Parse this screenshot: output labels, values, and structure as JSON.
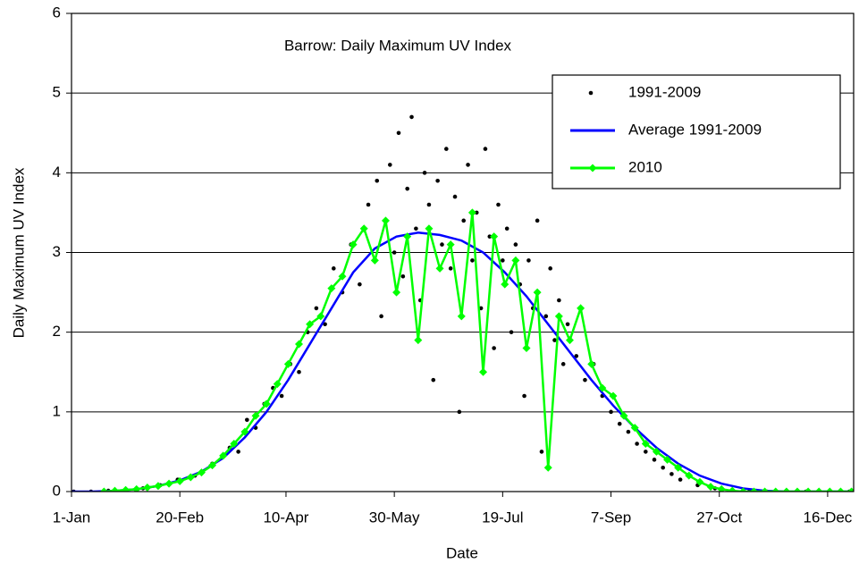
{
  "chart_data": {
    "type": "scatter",
    "title": "Barrow: Daily Maximum UV Index",
    "x_label": "Date",
    "y_label": "Daily Maximum UV Index",
    "xlim": [
      1,
      362
    ],
    "xticks": [
      {
        "value": 1,
        "label": "1-Jan"
      },
      {
        "value": 51,
        "label": "20-Feb"
      },
      {
        "value": 100,
        "label": "10-Apr"
      },
      {
        "value": 150,
        "label": "30-May"
      },
      {
        "value": 200,
        "label": "19-Jul"
      },
      {
        "value": 250,
        "label": "7-Sep"
      },
      {
        "value": 300,
        "label": "27-Oct"
      },
      {
        "value": 350,
        "label": "16-Dec"
      }
    ],
    "ylim": [
      0,
      6
    ],
    "yticks": [
      0,
      1,
      2,
      3,
      4,
      5,
      6
    ],
    "grid": "y",
    "legend": "upper right",
    "series": [
      {
        "name": "1991-2009",
        "color": "#000000",
        "marker": "dot",
        "line": false,
        "x": [
          2,
          10,
          18,
          26,
          34,
          42,
          50,
          58,
          66,
          74,
          78,
          82,
          86,
          90,
          94,
          98,
          102,
          106,
          110,
          114,
          118,
          122,
          126,
          130,
          134,
          138,
          142,
          144,
          146,
          148,
          150,
          152,
          154,
          156,
          158,
          160,
          162,
          164,
          166,
          168,
          170,
          172,
          174,
          176,
          178,
          180,
          182,
          184,
          186,
          188,
          190,
          192,
          194,
          196,
          198,
          200,
          202,
          204,
          206,
          208,
          210,
          212,
          214,
          216,
          218,
          220,
          222,
          224,
          226,
          228,
          230,
          234,
          238,
          242,
          246,
          250,
          254,
          258,
          262,
          266,
          270,
          274,
          278,
          282,
          290,
          298,
          306,
          314,
          322,
          340,
          360
        ],
        "values": [
          0,
          0,
          0.01,
          0.02,
          0.04,
          0.08,
          0.15,
          0.2,
          0.35,
          0.55,
          0.5,
          0.9,
          0.8,
          1.1,
          1.3,
          1.2,
          1.6,
          1.5,
          2.0,
          2.3,
          2.1,
          2.8,
          2.5,
          3.1,
          2.6,
          3.6,
          3.9,
          2.2,
          3.4,
          4.1,
          3.0,
          4.5,
          2.7,
          3.8,
          4.7,
          3.3,
          2.4,
          4.0,
          3.6,
          1.4,
          3.9,
          3.1,
          4.3,
          2.8,
          3.7,
          1.0,
          3.4,
          4.1,
          2.9,
          3.5,
          2.3,
          4.3,
          3.2,
          1.8,
          3.6,
          2.9,
          3.3,
          2.0,
          3.1,
          2.6,
          1.2,
          2.9,
          2.3,
          3.4,
          0.5,
          2.2,
          2.8,
          1.9,
          2.4,
          1.6,
          2.1,
          1.7,
          1.4,
          1.6,
          1.2,
          1.0,
          0.85,
          0.75,
          0.6,
          0.5,
          0.4,
          0.3,
          0.22,
          0.15,
          0.08,
          0.04,
          0.02,
          0.01,
          0,
          0,
          0
        ]
      },
      {
        "name": "Average 1991-2009",
        "color": "#0000ff",
        "marker": "none",
        "line": true,
        "x": [
          1,
          11,
          21,
          31,
          41,
          51,
          61,
          71,
          81,
          91,
          101,
          111,
          121,
          131,
          141,
          151,
          161,
          171,
          181,
          191,
          201,
          211,
          221,
          231,
          241,
          251,
          261,
          271,
          281,
          291,
          301,
          311,
          321,
          331,
          341,
          351,
          361
        ],
        "values": [
          0,
          0,
          0.01,
          0.03,
          0.07,
          0.14,
          0.25,
          0.42,
          0.68,
          1.0,
          1.4,
          1.85,
          2.3,
          2.75,
          3.05,
          3.2,
          3.25,
          3.22,
          3.15,
          3.0,
          2.75,
          2.45,
          2.1,
          1.75,
          1.4,
          1.08,
          0.8,
          0.55,
          0.35,
          0.2,
          0.1,
          0.04,
          0.01,
          0,
          0,
          0,
          0
        ]
      },
      {
        "name": "2010",
        "color": "#00ff00",
        "marker": "diamond",
        "line": true,
        "x": [
          16,
          21,
          26,
          31,
          36,
          41,
          46,
          51,
          56,
          61,
          66,
          71,
          76,
          81,
          86,
          91,
          96,
          101,
          106,
          111,
          116,
          121,
          126,
          131,
          136,
          141,
          146,
          151,
          156,
          161,
          166,
          171,
          176,
          181,
          186,
          191,
          196,
          201,
          206,
          211,
          216,
          221,
          226,
          231,
          236,
          241,
          246,
          251,
          256,
          261,
          266,
          271,
          276,
          281,
          286,
          291,
          296,
          301,
          306,
          311,
          316,
          321,
          326,
          331,
          336,
          341,
          346,
          351,
          356,
          361
        ],
        "values": [
          0,
          0.01,
          0.02,
          0.03,
          0.05,
          0.07,
          0.1,
          0.13,
          0.18,
          0.24,
          0.33,
          0.45,
          0.6,
          0.75,
          0.95,
          1.1,
          1.35,
          1.6,
          1.85,
          2.1,
          2.2,
          2.55,
          2.7,
          3.1,
          3.3,
          2.9,
          3.4,
          2.5,
          3.2,
          1.9,
          3.3,
          2.8,
          3.1,
          2.2,
          3.5,
          1.5,
          3.2,
          2.6,
          2.9,
          1.8,
          2.5,
          0.3,
          2.2,
          1.9,
          2.3,
          1.6,
          1.3,
          1.2,
          0.95,
          0.8,
          0.6,
          0.5,
          0.4,
          0.3,
          0.2,
          0.12,
          0.06,
          0.03,
          0.01,
          0,
          0,
          0,
          0,
          0,
          0,
          0,
          0,
          0,
          0,
          0
        ]
      }
    ]
  }
}
